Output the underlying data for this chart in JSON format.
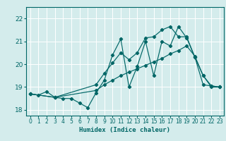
{
  "xlabel": "Humidex (Indice chaleur)",
  "bg_color": "#d4ecec",
  "grid_color": "#ffffff",
  "line_color": "#006666",
  "xlim": [
    -0.5,
    23.5
  ],
  "ylim": [
    17.75,
    22.5
  ],
  "xticks": [
    0,
    1,
    2,
    3,
    4,
    5,
    6,
    7,
    8,
    9,
    10,
    11,
    12,
    13,
    14,
    15,
    16,
    17,
    18,
    19,
    20,
    21,
    22,
    23
  ],
  "yticks": [
    18,
    19,
    20,
    21,
    22
  ],
  "series": [
    {
      "x": [
        0,
        1,
        2,
        3,
        4,
        5,
        6,
        7,
        8,
        9,
        10,
        11,
        12,
        13,
        14,
        15,
        16,
        17,
        18,
        19,
        20,
        21,
        22,
        23
      ],
      "y": [
        18.7,
        18.65,
        18.8,
        18.55,
        18.5,
        18.5,
        18.3,
        18.1,
        18.75,
        19.3,
        20.4,
        21.1,
        19.0,
        19.9,
        21.0,
        19.5,
        21.0,
        20.8,
        21.65,
        21.15,
        20.3,
        19.1,
        19.05,
        19.0
      ]
    },
    {
      "x": [
        0,
        3,
        8,
        9,
        10,
        11,
        12,
        13,
        14,
        15,
        16,
        17,
        18,
        19,
        20,
        21,
        22,
        23
      ],
      "y": [
        18.7,
        18.55,
        19.1,
        19.6,
        20.05,
        20.5,
        20.2,
        20.5,
        21.15,
        21.2,
        21.5,
        21.65,
        21.2,
        21.2,
        20.3,
        19.5,
        19.0,
        19.0
      ]
    },
    {
      "x": [
        0,
        3,
        8,
        9,
        10,
        11,
        12,
        13,
        14,
        15,
        16,
        17,
        18,
        19,
        20,
        21,
        22,
        23
      ],
      "y": [
        18.7,
        18.55,
        18.85,
        19.1,
        19.3,
        19.5,
        19.65,
        19.8,
        19.95,
        20.1,
        20.25,
        20.45,
        20.6,
        20.8,
        20.35,
        19.5,
        19.05,
        19.0
      ]
    }
  ]
}
